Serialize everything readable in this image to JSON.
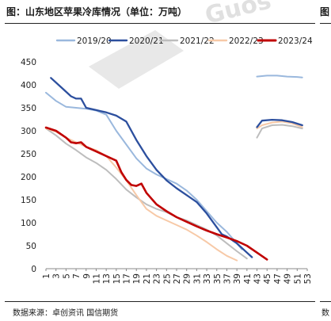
{
  "header": {
    "title": "图：山东地区苹果冷库情况（单位：万吨）",
    "cut_title": "图"
  },
  "footer": {
    "source": "数据来源：卓创资讯 国信期货",
    "cut_source": "数"
  },
  "watermark": {
    "text": "Guos"
  },
  "colors": {
    "s2019": "#9ab8dd",
    "s2020": "#2c4f9e",
    "s2021": "#bdbdbd",
    "s2022": "#f7c9a7",
    "s2023": "#c00000",
    "axis": "#888888",
    "text": "#222222"
  },
  "chart_data": {
    "type": "line",
    "title": "山东地区苹果冷库情况（单位：万吨）",
    "xlabel": "",
    "ylabel": "",
    "xlim": [
      1,
      53
    ],
    "ylim": [
      0,
      450
    ],
    "x_ticks": [
      1,
      3,
      5,
      7,
      9,
      11,
      13,
      15,
      17,
      19,
      21,
      23,
      25,
      27,
      29,
      31,
      33,
      35,
      37,
      39,
      41,
      43,
      45,
      47,
      49,
      51,
      53
    ],
    "y_ticks": [
      0,
      50,
      100,
      150,
      200,
      250,
      300,
      350,
      400,
      450
    ],
    "grid": false,
    "legend_position": "top",
    "series": [
      {
        "name": "2019/20",
        "color_key": "s2019",
        "segments": [
          [
            [
              1,
              383
            ],
            [
              3,
              365
            ],
            [
              5,
              352
            ],
            [
              7,
              350
            ],
            [
              9,
              348
            ],
            [
              11,
              344
            ],
            [
              13,
              335
            ],
            [
              15,
              300
            ],
            [
              17,
              270
            ],
            [
              19,
              240
            ],
            [
              21,
              218
            ],
            [
              23,
              205
            ],
            [
              25,
              195
            ],
            [
              27,
              185
            ],
            [
              29,
              170
            ],
            [
              31,
              150
            ],
            [
              33,
              125
            ],
            [
              35,
              100
            ],
            [
              37,
              80
            ],
            [
              39,
              55
            ],
            [
              40,
              42
            ]
          ],
          [
            [
              43,
              418
            ],
            [
              45,
              420
            ],
            [
              47,
              420
            ],
            [
              49,
              418
            ],
            [
              51,
              417
            ],
            [
              52,
              416
            ]
          ]
        ]
      },
      {
        "name": "2020/21",
        "color_key": "s2020",
        "segments": [
          [
            [
              2,
              415
            ],
            [
              4,
              395
            ],
            [
              6,
              375
            ],
            [
              7,
              370
            ],
            [
              8,
              370
            ],
            [
              9,
              350
            ],
            [
              11,
              345
            ],
            [
              13,
              340
            ],
            [
              15,
              333
            ],
            [
              17,
              320
            ],
            [
              19,
              280
            ],
            [
              21,
              245
            ],
            [
              23,
              215
            ],
            [
              25,
              192
            ],
            [
              27,
              175
            ],
            [
              29,
              160
            ],
            [
              31,
              145
            ],
            [
              33,
              120
            ],
            [
              35,
              90
            ],
            [
              36,
              75
            ],
            [
              37,
              70
            ],
            [
              39,
              55
            ],
            [
              41,
              35
            ],
            [
              42,
              25
            ]
          ],
          [
            [
              43,
              308
            ],
            [
              44,
              322
            ],
            [
              46,
              324
            ],
            [
              48,
              323
            ],
            [
              50,
              319
            ],
            [
              52,
              312
            ]
          ]
        ]
      },
      {
        "name": "2021/22",
        "color_key": "s2021",
        "segments": [
          [
            [
              1,
              305
            ],
            [
              3,
              290
            ],
            [
              5,
              272
            ],
            [
              7,
              258
            ],
            [
              9,
              242
            ],
            [
              11,
              230
            ],
            [
              13,
              215
            ],
            [
              15,
              195
            ],
            [
              17,
              172
            ],
            [
              19,
              155
            ],
            [
              21,
              140
            ],
            [
              23,
              130
            ],
            [
              25,
              123
            ],
            [
              27,
              112
            ],
            [
              29,
              105
            ],
            [
              31,
              95
            ],
            [
              33,
              85
            ],
            [
              35,
              72
            ],
            [
              37,
              55
            ],
            [
              39,
              38
            ],
            [
              41,
              22
            ]
          ],
          [
            [
              43,
              285
            ],
            [
              44,
              305
            ],
            [
              46,
              312
            ],
            [
              48,
              313
            ],
            [
              50,
              310
            ],
            [
              52,
              305
            ]
          ]
        ]
      },
      {
        "name": "2022/23",
        "color_key": "s2022",
        "segments": [
          [
            [
              1,
              305
            ],
            [
              3,
              298
            ],
            [
              5,
              285
            ],
            [
              7,
              275
            ],
            [
              9,
              265
            ],
            [
              11,
              258
            ],
            [
              13,
              245
            ],
            [
              15,
              220
            ],
            [
              17,
              192
            ],
            [
              19,
              160
            ],
            [
              21,
              130
            ],
            [
              23,
              115
            ],
            [
              25,
              105
            ],
            [
              27,
              95
            ],
            [
              29,
              85
            ],
            [
              31,
              72
            ],
            [
              33,
              58
            ],
            [
              35,
              42
            ],
            [
              37,
              28
            ],
            [
              39,
              18
            ]
          ],
          [
            [
              43,
              305
            ],
            [
              44,
              312
            ],
            [
              46,
              318
            ],
            [
              48,
              320
            ],
            [
              50,
              316
            ],
            [
              52,
              308
            ]
          ]
        ]
      },
      {
        "name": "2023/24",
        "color_key": "s2023",
        "segments": [
          [
            [
              1,
              307
            ],
            [
              3,
              300
            ],
            [
              5,
              285
            ],
            [
              6,
              275
            ],
            [
              7,
              273
            ],
            [
              8,
              275
            ],
            [
              9,
              265
            ],
            [
              11,
              255
            ],
            [
              13,
              245
            ],
            [
              14,
              240
            ],
            [
              15,
              235
            ],
            [
              16,
              210
            ],
            [
              17,
              193
            ],
            [
              18,
              182
            ],
            [
              19,
              180
            ],
            [
              20,
              185
            ],
            [
              21,
              165
            ],
            [
              23,
              140
            ],
            [
              25,
              125
            ],
            [
              27,
              112
            ],
            [
              29,
              102
            ],
            [
              31,
              92
            ],
            [
              33,
              83
            ],
            [
              35,
              75
            ],
            [
              37,
              68
            ],
            [
              39,
              60
            ],
            [
              41,
              50
            ],
            [
              43,
              35
            ],
            [
              45,
              20
            ]
          ]
        ]
      }
    ]
  }
}
